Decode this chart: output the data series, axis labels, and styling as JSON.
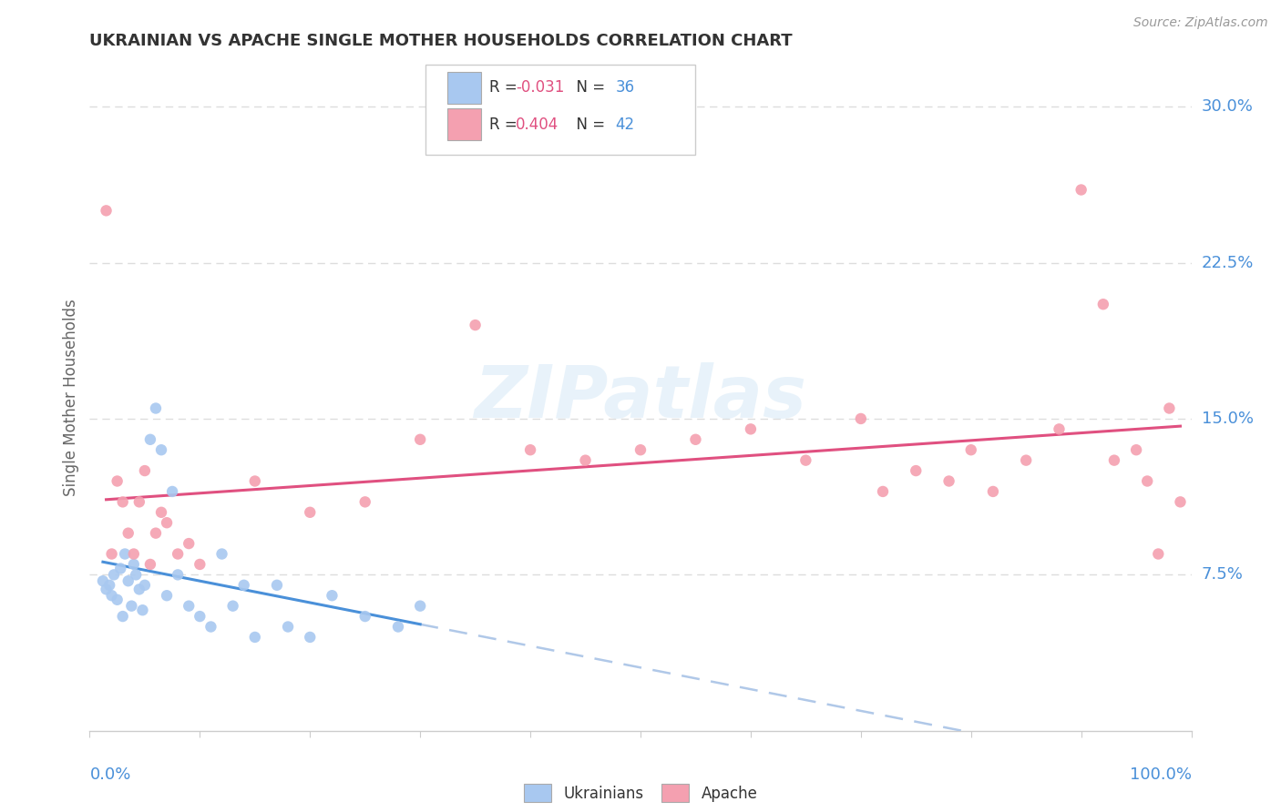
{
  "title": "UKRAINIAN VS APACHE SINGLE MOTHER HOUSEHOLDS CORRELATION CHART",
  "source": "Source: ZipAtlas.com",
  "ylabel": "Single Mother Households",
  "watermark": "ZIPatlas",
  "legend": {
    "ukrainian": {
      "R": -0.031,
      "N": 36,
      "color": "#a8c8f0"
    },
    "apache": {
      "R": 0.404,
      "N": 42,
      "color": "#f4a0b0"
    }
  },
  "xlim": [
    0,
    100
  ],
  "ylim": [
    0,
    32
  ],
  "yticks": [
    7.5,
    15.0,
    22.5,
    30.0
  ],
  "ytick_labels": [
    "7.5%",
    "15.0%",
    "22.5%",
    "30.0%"
  ],
  "background_color": "#ffffff",
  "grid_color": "#dddddd",
  "ukrainian_scatter": [
    [
      1.2,
      7.2
    ],
    [
      1.5,
      6.8
    ],
    [
      1.8,
      7.0
    ],
    [
      2.0,
      6.5
    ],
    [
      2.2,
      7.5
    ],
    [
      2.5,
      6.3
    ],
    [
      2.8,
      7.8
    ],
    [
      3.0,
      5.5
    ],
    [
      3.2,
      8.5
    ],
    [
      3.5,
      7.2
    ],
    [
      3.8,
      6.0
    ],
    [
      4.0,
      8.0
    ],
    [
      4.2,
      7.5
    ],
    [
      4.5,
      6.8
    ],
    [
      4.8,
      5.8
    ],
    [
      5.0,
      7.0
    ],
    [
      5.5,
      14.0
    ],
    [
      6.0,
      15.5
    ],
    [
      6.5,
      13.5
    ],
    [
      7.0,
      6.5
    ],
    [
      7.5,
      11.5
    ],
    [
      8.0,
      7.5
    ],
    [
      9.0,
      6.0
    ],
    [
      10.0,
      5.5
    ],
    [
      11.0,
      5.0
    ],
    [
      12.0,
      8.5
    ],
    [
      13.0,
      6.0
    ],
    [
      14.0,
      7.0
    ],
    [
      15.0,
      4.5
    ],
    [
      17.0,
      7.0
    ],
    [
      18.0,
      5.0
    ],
    [
      20.0,
      4.5
    ],
    [
      22.0,
      6.5
    ],
    [
      25.0,
      5.5
    ],
    [
      28.0,
      5.0
    ],
    [
      30.0,
      6.0
    ]
  ],
  "apache_scatter": [
    [
      1.5,
      25.0
    ],
    [
      2.0,
      8.5
    ],
    [
      2.5,
      12.0
    ],
    [
      3.0,
      11.0
    ],
    [
      3.5,
      9.5
    ],
    [
      4.0,
      8.5
    ],
    [
      4.5,
      11.0
    ],
    [
      5.0,
      12.5
    ],
    [
      5.5,
      8.0
    ],
    [
      6.0,
      9.5
    ],
    [
      6.5,
      10.5
    ],
    [
      7.0,
      10.0
    ],
    [
      8.0,
      8.5
    ],
    [
      9.0,
      9.0
    ],
    [
      10.0,
      8.0
    ],
    [
      15.0,
      12.0
    ],
    [
      20.0,
      10.5
    ],
    [
      25.0,
      11.0
    ],
    [
      30.0,
      14.0
    ],
    [
      35.0,
      19.5
    ],
    [
      40.0,
      13.5
    ],
    [
      45.0,
      13.0
    ],
    [
      50.0,
      13.5
    ],
    [
      55.0,
      14.0
    ],
    [
      60.0,
      14.5
    ],
    [
      65.0,
      13.0
    ],
    [
      70.0,
      15.0
    ],
    [
      72.0,
      11.5
    ],
    [
      75.0,
      12.5
    ],
    [
      78.0,
      12.0
    ],
    [
      80.0,
      13.5
    ],
    [
      82.0,
      11.5
    ],
    [
      85.0,
      13.0
    ],
    [
      88.0,
      14.5
    ],
    [
      90.0,
      26.0
    ],
    [
      92.0,
      20.5
    ],
    [
      93.0,
      13.0
    ],
    [
      95.0,
      13.5
    ],
    [
      96.0,
      12.0
    ],
    [
      97.0,
      8.5
    ],
    [
      98.0,
      15.5
    ],
    [
      99.0,
      11.0
    ]
  ],
  "ukrainian_line_color": "#4a90d9",
  "apache_line_color": "#e05080",
  "dashed_line_color": "#b0c8e8",
  "title_color": "#333333",
  "tick_label_color": "#4a90d9",
  "source_color": "#999999",
  "legend_R_color": "#e05080",
  "legend_N_color": "#4a90d9"
}
